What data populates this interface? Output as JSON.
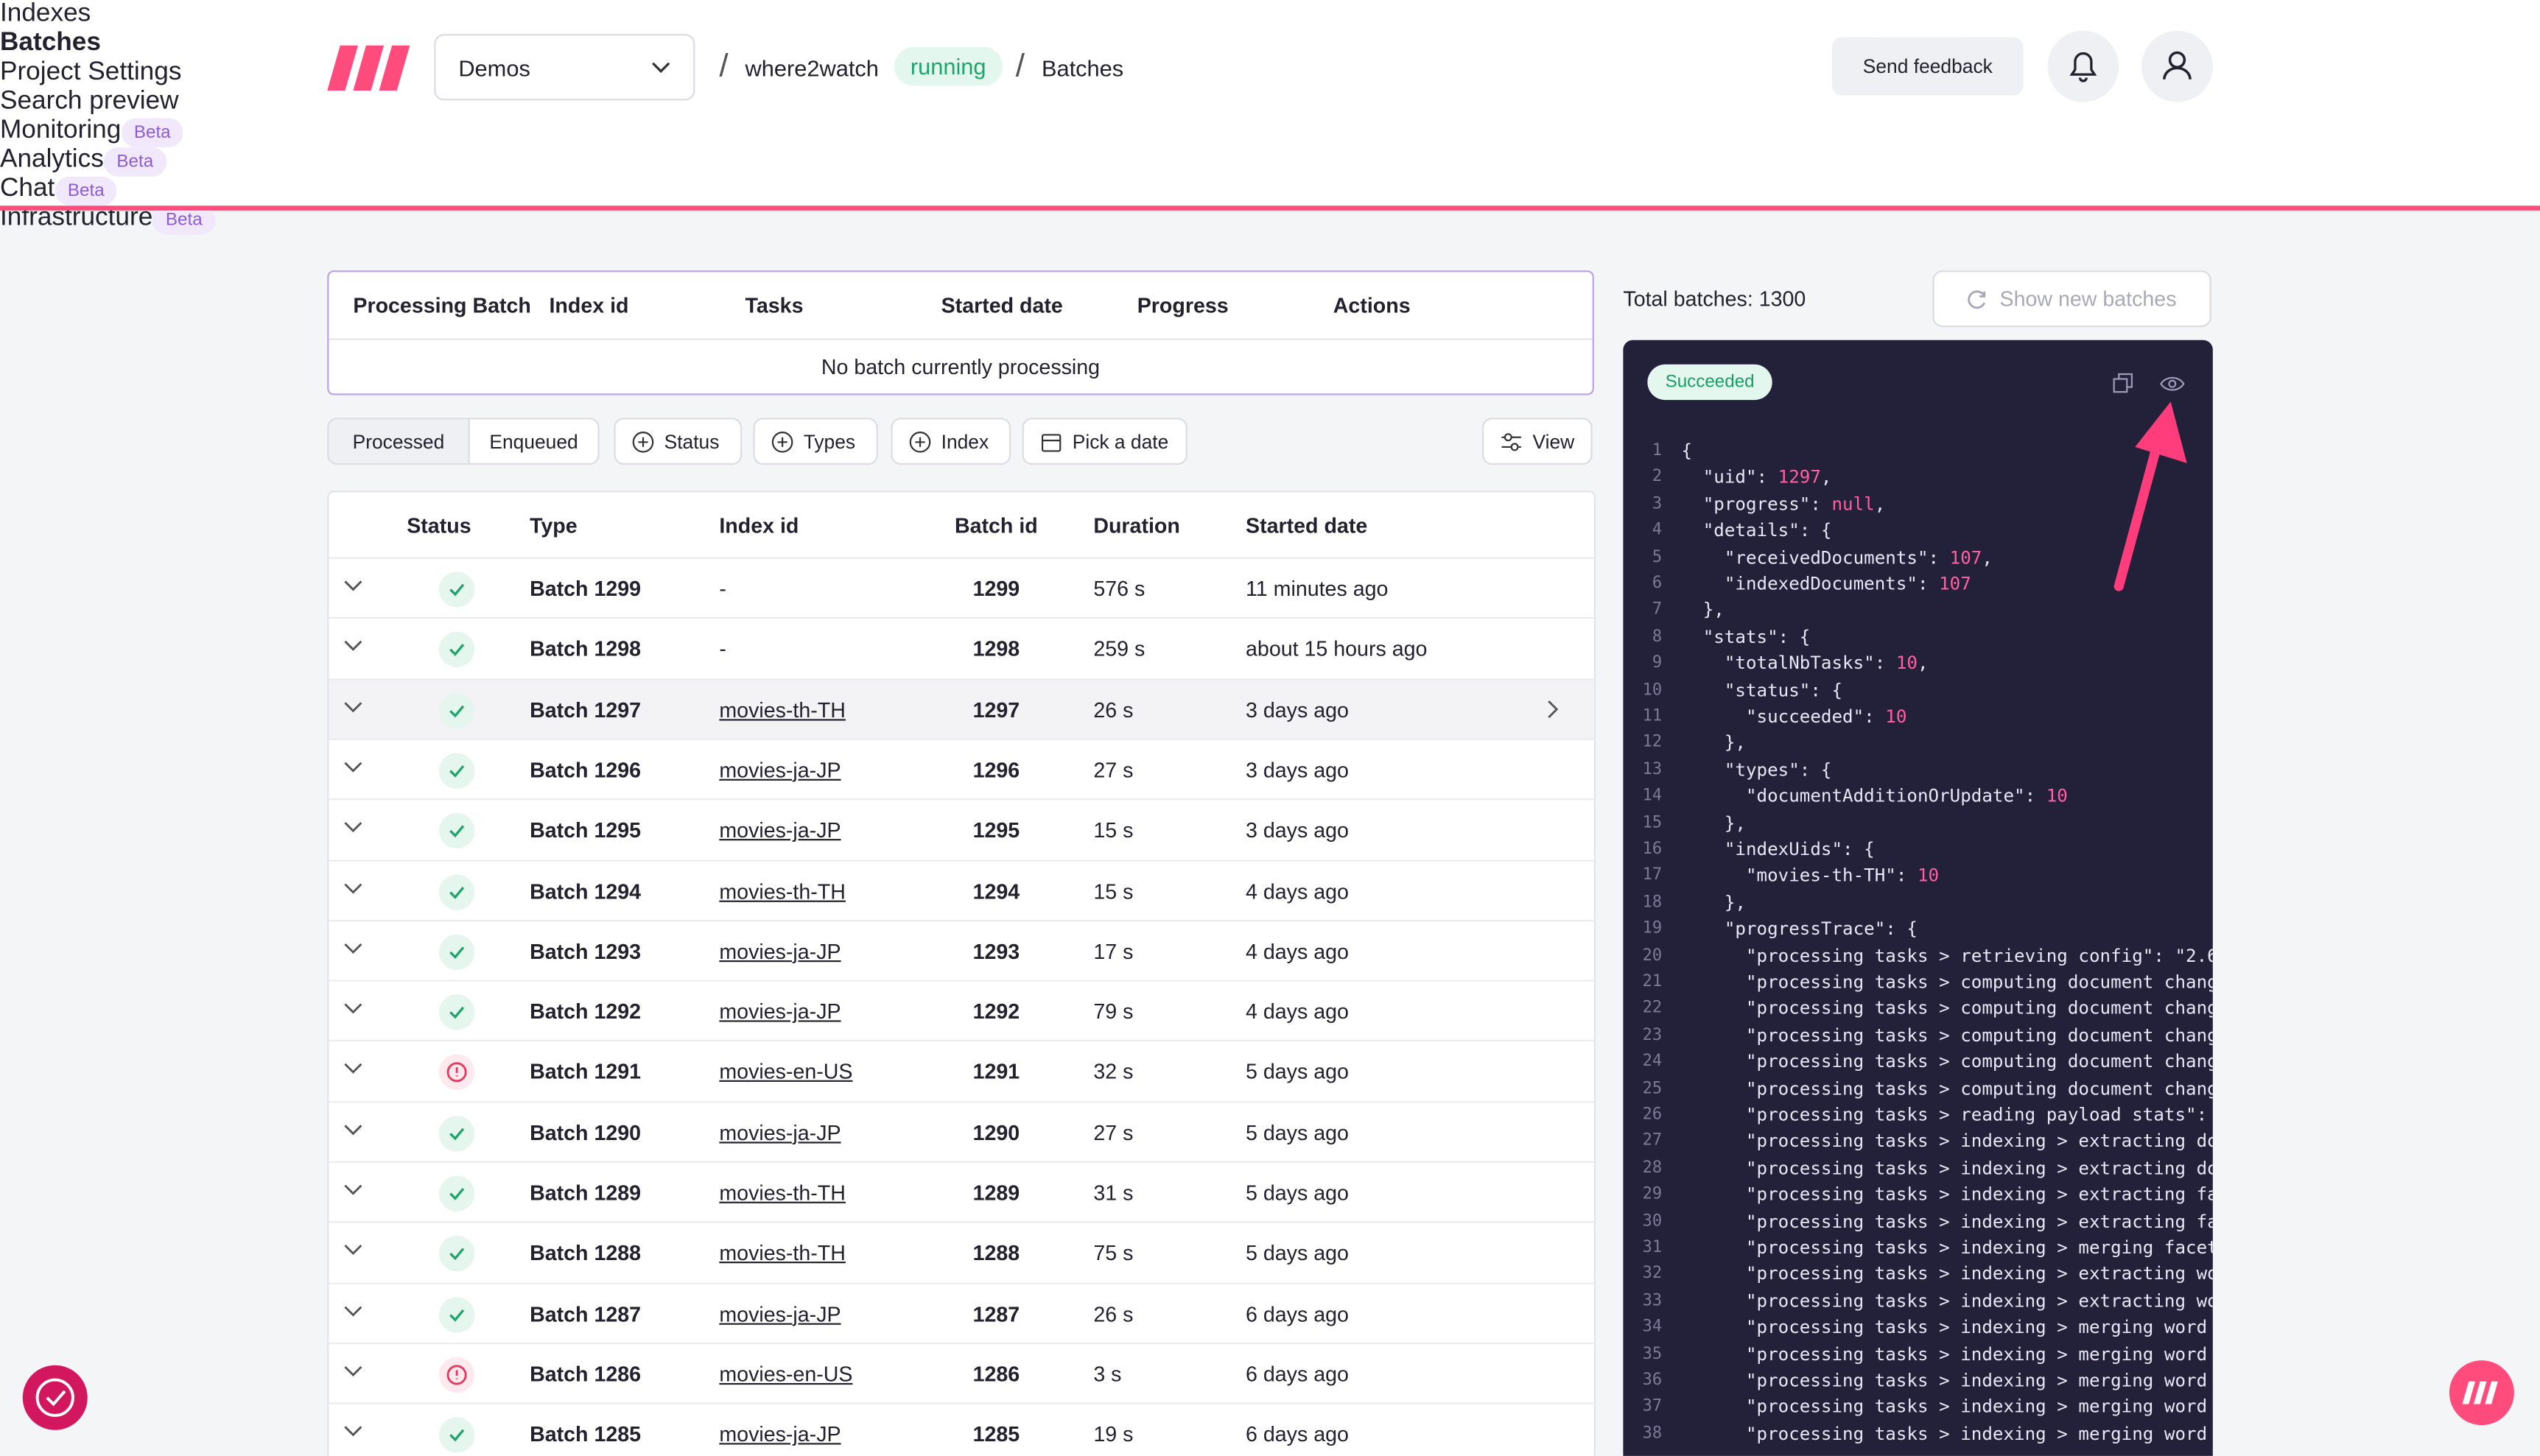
{
  "header": {
    "project": "Demos",
    "project_name": "where2watch",
    "project_status": "running",
    "section": "Batches",
    "feedback": "Send feedback"
  },
  "tabs": [
    {
      "label": "Indexes"
    },
    {
      "label": "Batches",
      "active": true
    },
    {
      "label": "Project Settings"
    },
    {
      "label": "Search preview"
    },
    {
      "label": "Monitoring",
      "badge": "Beta"
    },
    {
      "label": "Analytics",
      "badge": "Beta"
    },
    {
      "label": "Chat",
      "badge": "Beta"
    },
    {
      "label": "Infrastructure",
      "badge": "Beta"
    }
  ],
  "processing": {
    "columns": [
      "Processing Batch",
      "Index id",
      "Tasks",
      "Started date",
      "Progress",
      "Actions"
    ],
    "empty": "No batch currently processing"
  },
  "filters": {
    "toggles": [
      "Processed",
      "Enqueued"
    ],
    "buttons": [
      "Status",
      "Types",
      "Index",
      "Pick a date"
    ],
    "view": "View"
  },
  "table": {
    "columns": [
      "Status",
      "Type",
      "Index id",
      "Batch id",
      "Duration",
      "Started date"
    ],
    "rows": [
      {
        "status": "succeeded",
        "type": "Batch 1299",
        "index": "-",
        "id": 1299,
        "duration": "576 s",
        "started": "11 minutes ago"
      },
      {
        "status": "succeeded",
        "type": "Batch 1298",
        "index": "-",
        "id": 1298,
        "duration": "259 s",
        "started": "about 15 hours ago"
      },
      {
        "status": "succeeded",
        "type": "Batch 1297",
        "index": "movies-th-TH",
        "id": 1297,
        "duration": "26 s",
        "started": "3 days ago",
        "selected": true
      },
      {
        "status": "succeeded",
        "type": "Batch 1296",
        "index": "movies-ja-JP",
        "id": 1296,
        "duration": "27 s",
        "started": "3 days ago"
      },
      {
        "status": "succeeded",
        "type": "Batch 1295",
        "index": "movies-ja-JP",
        "id": 1295,
        "duration": "15 s",
        "started": "3 days ago"
      },
      {
        "status": "succeeded",
        "type": "Batch 1294",
        "index": "movies-th-TH",
        "id": 1294,
        "duration": "15 s",
        "started": "4 days ago"
      },
      {
        "status": "succeeded",
        "type": "Batch 1293",
        "index": "movies-ja-JP",
        "id": 1293,
        "duration": "17 s",
        "started": "4 days ago"
      },
      {
        "status": "succeeded",
        "type": "Batch 1292",
        "index": "movies-ja-JP",
        "id": 1292,
        "duration": "79 s",
        "started": "4 days ago"
      },
      {
        "status": "failed",
        "type": "Batch 1291",
        "index": "movies-en-US",
        "id": 1291,
        "duration": "32 s",
        "started": "5 days ago"
      },
      {
        "status": "succeeded",
        "type": "Batch 1290",
        "index": "movies-ja-JP",
        "id": 1290,
        "duration": "27 s",
        "started": "5 days ago"
      },
      {
        "status": "succeeded",
        "type": "Batch 1289",
        "index": "movies-th-TH",
        "id": 1289,
        "duration": "31 s",
        "started": "5 days ago"
      },
      {
        "status": "succeeded",
        "type": "Batch 1288",
        "index": "movies-th-TH",
        "id": 1288,
        "duration": "75 s",
        "started": "5 days ago"
      },
      {
        "status": "succeeded",
        "type": "Batch 1287",
        "index": "movies-ja-JP",
        "id": 1287,
        "duration": "26 s",
        "started": "6 days ago"
      },
      {
        "status": "failed",
        "type": "Batch 1286",
        "index": "movies-en-US",
        "id": 1286,
        "duration": "3 s",
        "started": "6 days ago"
      },
      {
        "status": "succeeded",
        "type": "Batch 1285",
        "index": "movies-ja-JP",
        "id": 1285,
        "duration": "19 s",
        "started": "6 days ago"
      }
    ]
  },
  "panel": {
    "total": "Total batches: 1300",
    "show_new": "Show new batches",
    "status": "Succeeded",
    "line_numbers": [
      1,
      2,
      3,
      4,
      5,
      6,
      7,
      8,
      9,
      10,
      11,
      12,
      13,
      14,
      15,
      16,
      17,
      18,
      19,
      20,
      21,
      22,
      23,
      24,
      25,
      26,
      27,
      28,
      29,
      30,
      31,
      32,
      33,
      34,
      35,
      36,
      37,
      38
    ],
    "lines": [
      "{",
      "  \"uid\": 1297,",
      "  \"progress\": null,",
      "  \"details\": {",
      "    \"receivedDocuments\": 107,",
      "    \"indexedDocuments\": 107",
      "  },",
      "  \"stats\": {",
      "    \"totalNbTasks\": 10,",
      "    \"status\": {",
      "      \"succeeded\": 10",
      "    },",
      "    \"types\": {",
      "      \"documentAdditionOrUpdate\": 10",
      "    },",
      "    \"indexUids\": {",
      "      \"movies-th-TH\": 10",
      "    },",
      "    \"progressTrace\": {",
      "      \"processing tasks > retrieving config\": \"2.6",
      "      \"processing tasks > computing document chang",
      "      \"processing tasks > computing document chang",
      "      \"processing tasks > computing document chang",
      "      \"processing tasks > computing document chang",
      "      \"processing tasks > computing document chang",
      "      \"processing tasks > reading payload stats\":",
      "      \"processing tasks > indexing > extracting do",
      "      \"processing tasks > indexing > extracting do",
      "      \"processing tasks > indexing > extracting fa",
      "      \"processing tasks > indexing > extracting fa",
      "      \"processing tasks > indexing > merging facet",
      "      \"processing tasks > indexing > extracting wo",
      "      \"processing tasks > indexing > extracting wo",
      "      \"processing tasks > indexing > merging word ",
      "      \"processing tasks > indexing > merging word ",
      "      \"processing tasks > indexing > merging word ",
      "      \"processing tasks > indexing > merging word ",
      "      \"processing tasks > indexing > merging word "
    ]
  }
}
